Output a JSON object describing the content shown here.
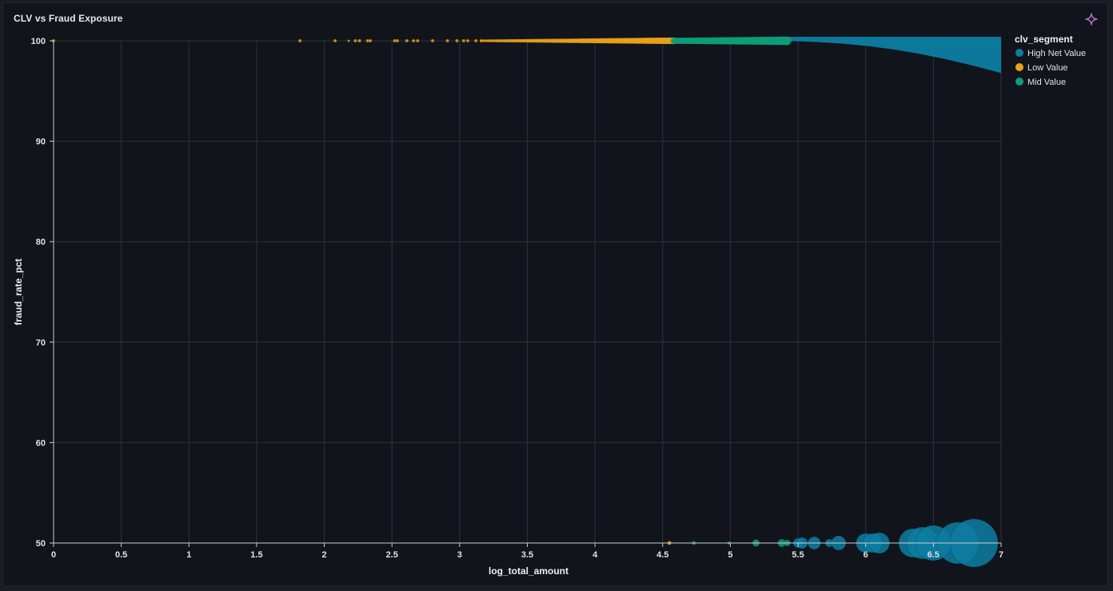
{
  "panel": {
    "title": "CLV vs Fraud Exposure"
  },
  "icons": {
    "sparkle": "sparkle-icon"
  },
  "colors": {
    "high": "#0d7ea3",
    "low": "#e9a118",
    "mid": "#0f9c78",
    "grid": "#2d333b",
    "axis": "#c9cdd3"
  },
  "chart_data": {
    "type": "scatter",
    "title": "CLV vs Fraud Exposure",
    "xlabel": "log_total_amount",
    "ylabel": "fraud_rate_pct",
    "xlim": [
      0,
      7
    ],
    "ylim": [
      50,
      100
    ],
    "x_ticks": [
      "0",
      "0.5",
      "1",
      "1.5",
      "2",
      "2.5",
      "3",
      "3.5",
      "4",
      "4.5",
      "5",
      "5.5",
      "6",
      "6.5",
      "7"
    ],
    "y_ticks": [
      "50",
      "60",
      "70",
      "80",
      "90",
      "100"
    ],
    "grid": true,
    "legend": {
      "title": "clv_segment",
      "placement": "right-top",
      "entries": [
        "High Net Value",
        "Low Value",
        "Mid Value"
      ]
    },
    "series": [
      {
        "name": "High Net Value",
        "color": "#0d7ea3",
        "points": [
          {
            "x": 5.5,
            "y": 50,
            "size": 6
          },
          {
            "x": 5.53,
            "y": 50,
            "size": 7
          },
          {
            "x": 5.62,
            "y": 50,
            "size": 8
          },
          {
            "x": 5.73,
            "y": 50,
            "size": 5
          },
          {
            "x": 5.8,
            "y": 50,
            "size": 9
          },
          {
            "x": 6.0,
            "y": 50,
            "size": 12
          },
          {
            "x": 6.05,
            "y": 50,
            "size": 12
          },
          {
            "x": 6.1,
            "y": 50,
            "size": 13
          },
          {
            "x": 6.35,
            "y": 50,
            "size": 18
          },
          {
            "x": 6.42,
            "y": 50,
            "size": 20
          },
          {
            "x": 6.5,
            "y": 50,
            "size": 22
          },
          {
            "x": 6.68,
            "y": 50,
            "size": 26
          },
          {
            "x": 6.8,
            "y": 50,
            "size": 30
          }
        ],
        "band": [
          [
            5.4,
            100,
            100
          ],
          [
            5.6,
            100,
            99.9
          ],
          [
            5.8,
            100,
            99.75
          ],
          [
            6.0,
            100,
            99.5
          ],
          [
            6.2,
            100,
            99.15
          ],
          [
            6.4,
            100,
            98.7
          ],
          [
            6.6,
            100,
            98.15
          ],
          [
            6.8,
            100,
            97.5
          ],
          [
            7.0,
            100,
            96.8
          ]
        ]
      },
      {
        "name": "Low Value",
        "color": "#e9a118",
        "points": [
          {
            "x": 0,
            "y": 100,
            "size": 2
          },
          {
            "x": 1.82,
            "y": 100,
            "size": 2
          },
          {
            "x": 2.08,
            "y": 100,
            "size": 2
          },
          {
            "x": 2.18,
            "y": 100,
            "size": 1.5
          },
          {
            "x": 2.23,
            "y": 100,
            "size": 2
          },
          {
            "x": 2.26,
            "y": 100,
            "size": 2
          },
          {
            "x": 2.32,
            "y": 100,
            "size": 2
          },
          {
            "x": 2.34,
            "y": 100,
            "size": 2
          },
          {
            "x": 2.52,
            "y": 100,
            "size": 2
          },
          {
            "x": 2.54,
            "y": 100,
            "size": 2
          },
          {
            "x": 2.61,
            "y": 100,
            "size": 2
          },
          {
            "x": 2.66,
            "y": 100,
            "size": 2
          },
          {
            "x": 2.69,
            "y": 100,
            "size": 2
          },
          {
            "x": 2.8,
            "y": 100,
            "size": 2
          },
          {
            "x": 2.91,
            "y": 100,
            "size": 2
          },
          {
            "x": 2.98,
            "y": 100,
            "size": 2
          },
          {
            "x": 3.03,
            "y": 100,
            "size": 2
          },
          {
            "x": 3.06,
            "y": 100,
            "size": 2
          },
          {
            "x": 3.12,
            "y": 100,
            "size": 2
          },
          {
            "x": 3.16,
            "y": 100,
            "size": 2
          },
          {
            "x": 4.55,
            "y": 50,
            "size": 2.5
          }
        ],
        "dense_range": [
          3.16,
          4.58
        ]
      },
      {
        "name": "Mid Value",
        "color": "#0f9c78",
        "points": [
          {
            "x": 4.73,
            "y": 50,
            "size": 2.5
          },
          {
            "x": 4.99,
            "y": 50,
            "size": 2
          },
          {
            "x": 5.19,
            "y": 50,
            "size": 4.5
          },
          {
            "x": 5.38,
            "y": 50,
            "size": 5
          },
          {
            "x": 5.42,
            "y": 50,
            "size": 4
          }
        ],
        "dense_range": [
          4.58,
          5.42
        ]
      }
    ]
  }
}
